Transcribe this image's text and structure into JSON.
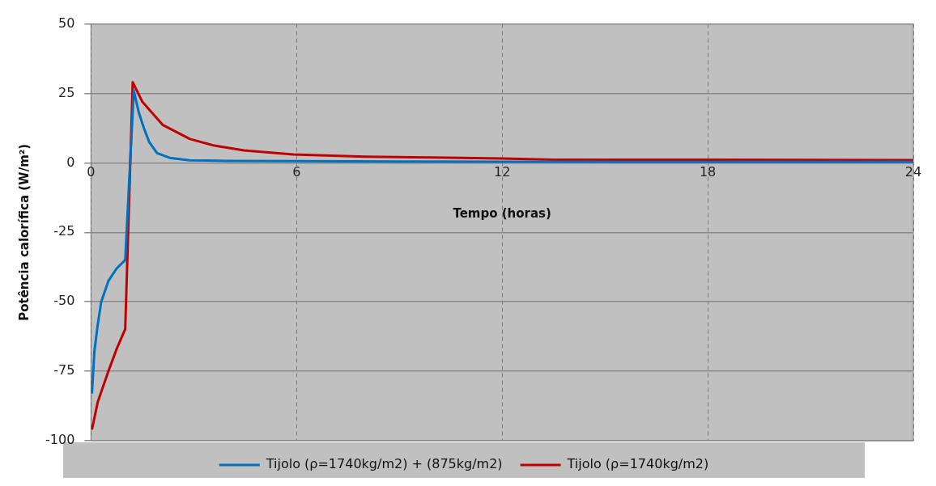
{
  "chart_data": {
    "type": "line",
    "xlabel": "Tempo (horas)",
    "ylabel": "Potência calorífica (W/m²)",
    "xlim": [
      0,
      24
    ],
    "xticks": [
      0,
      6,
      12,
      18,
      24
    ],
    "ylim": [
      -100,
      50
    ],
    "yticks": [
      -100,
      -75,
      -50,
      -25,
      0,
      25,
      50
    ],
    "grid": true,
    "legend": "bottom",
    "marker": "none",
    "line_style": "solid",
    "series": [
      {
        "name": "Tijolo (ρ=1740kg/m2) + (875kg/m2)",
        "color": "#0070c0",
        "x": [
          0.03,
          0.1,
          0.19,
          0.3,
          0.51,
          0.75,
          0.98,
          1.0,
          1.25,
          1.4,
          1.54,
          1.7,
          1.93,
          2.3,
          2.88,
          4,
          6,
          9,
          12,
          18,
          24
        ],
        "values": [
          -83,
          -68,
          -59,
          -50,
          -42.5,
          -38,
          -35.2,
          -35,
          26,
          18,
          12.7,
          7.5,
          3.5,
          1.8,
          0.9,
          0.7,
          0.6,
          0.5,
          0.4,
          0.3,
          0.3
        ]
      },
      {
        "name": "Tijolo (ρ=1740kg/m2)",
        "color": "#c00000",
        "x": [
          0.03,
          0.2,
          0.51,
          0.75,
          0.98,
          1.0,
          1.22,
          1.5,
          2.09,
          2.89,
          3.6,
          4.47,
          5.9,
          8,
          10,
          12,
          13.5,
          18,
          24
        ],
        "values": [
          -96,
          -86,
          -75,
          -67,
          -60.4,
          -60,
          29,
          22,
          13.7,
          8.6,
          6.2,
          4.5,
          3,
          2.2,
          1.9,
          1.6,
          1.1,
          1.1,
          1.0
        ]
      }
    ]
  }
}
